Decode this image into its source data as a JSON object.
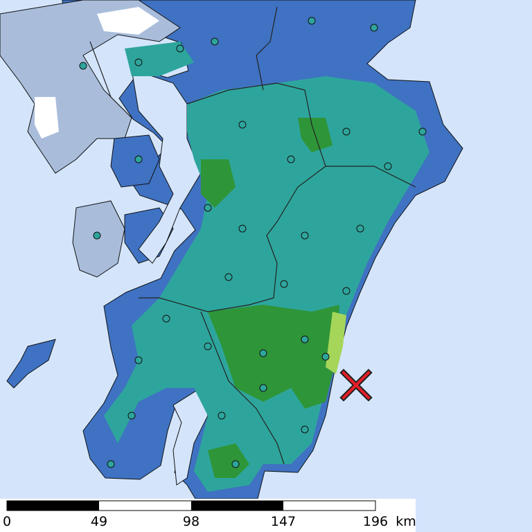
{
  "scale_bar": {
    "labels": [
      0,
      49,
      98,
      147,
      196
    ],
    "unit": "km"
  }
}
